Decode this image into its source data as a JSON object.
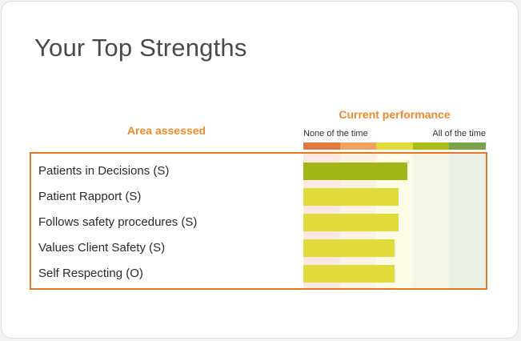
{
  "title": "Your Top Strengths",
  "colors": {
    "accent": "#ef8a2c",
    "frame": "#e87722",
    "scale": [
      "#e07a42",
      "#f0a35e",
      "#e0da3a",
      "#a8bd18",
      "#7ea24a"
    ],
    "bands": [
      "#fbe9e1",
      "#fbf1e4",
      "#fbfbe6",
      "#f2f6e2",
      "#e9f1e6"
    ],
    "bar_high": "#a2b516",
    "bar_mid": "#e0da3a"
  },
  "chart_data": {
    "type": "bar",
    "orientation": "horizontal",
    "title": "Current performance",
    "ylabel": "Area assessed",
    "scale_labels": [
      "None of the time",
      "All of the time"
    ],
    "categories": [
      "Patients in Decisions (S)",
      "Patient Rapport (S)",
      "Follows safety procedures (S)",
      "Values Client Safety (S)",
      "Self Respecting (O)"
    ],
    "values": [
      0.57,
      0.52,
      0.52,
      0.5,
      0.5
    ],
    "xlim": [
      0,
      1
    ]
  }
}
